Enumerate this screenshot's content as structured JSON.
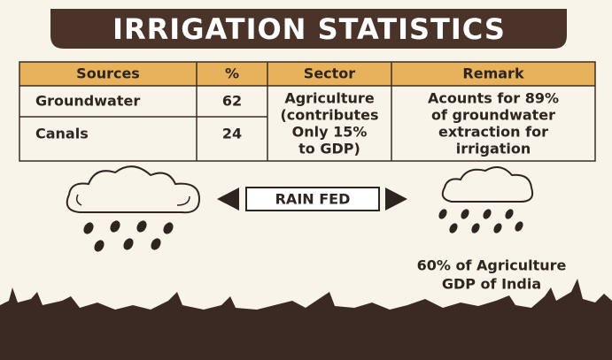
{
  "header": {
    "title": "IRRIGATION STATISTICS"
  },
  "table": {
    "headers": [
      "Sources",
      "%",
      "Sector",
      "Remark"
    ],
    "rows": [
      [
        "Groundwater",
        62
      ],
      [
        "Canals",
        24
      ]
    ],
    "sector_lines": [
      "Agriculture",
      "(contributes",
      "Only 15%",
      "to GDP)"
    ],
    "remark_lines": [
      "Acounts for 89%",
      "of groundwater",
      "extraction for",
      "irrigation"
    ]
  },
  "banner": "RAIN FED",
  "note_lines": [
    "60% of Agriculture",
    "GDP of India"
  ]
}
